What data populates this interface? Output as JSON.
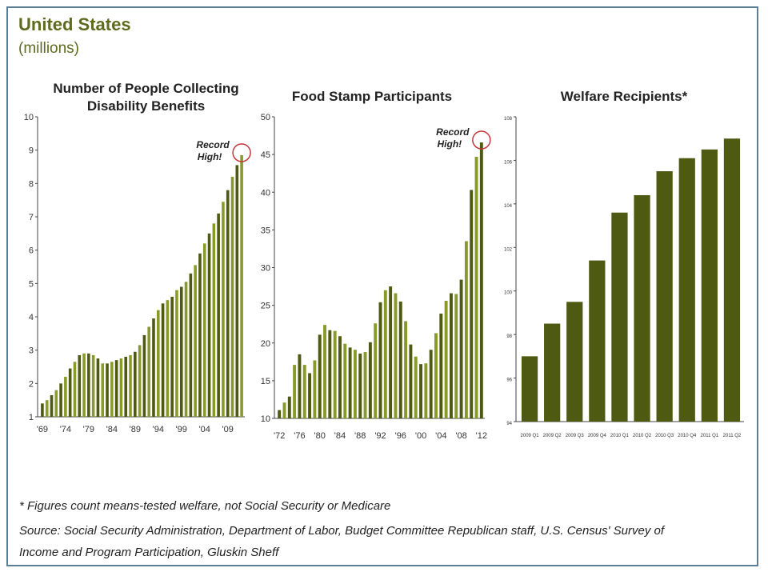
{
  "header": {
    "title": "United States",
    "subtitle": "(millions)"
  },
  "chart_data": [
    {
      "type": "bar",
      "title": "Number of People Collecting Disability Benefits",
      "annotation": "Record High!",
      "xlabel": "",
      "ylabel": "",
      "ylim": [
        1,
        10
      ],
      "yticks": [
        1,
        2,
        3,
        4,
        5,
        6,
        7,
        8,
        9,
        10
      ],
      "xtick_labels": [
        "'69",
        "'74",
        "'79",
        "'84",
        "'89",
        "'94",
        "'99",
        "'04",
        "'09"
      ],
      "categories": [
        "1969",
        "1970",
        "1971",
        "1972",
        "1973",
        "1974",
        "1975",
        "1976",
        "1977",
        "1978",
        "1979",
        "1980",
        "1981",
        "1982",
        "1983",
        "1984",
        "1985",
        "1986",
        "1987",
        "1988",
        "1989",
        "1990",
        "1991",
        "1992",
        "1993",
        "1994",
        "1995",
        "1996",
        "1997",
        "1998",
        "1999",
        "2000",
        "2001",
        "2002",
        "2003",
        "2004",
        "2005",
        "2006",
        "2007",
        "2008",
        "2009",
        "2010",
        "2011",
        "2012"
      ],
      "values": [
        1.4,
        1.5,
        1.65,
        1.8,
        2.0,
        2.2,
        2.45,
        2.65,
        2.85,
        2.9,
        2.9,
        2.85,
        2.75,
        2.6,
        2.6,
        2.65,
        2.7,
        2.75,
        2.8,
        2.85,
        2.95,
        3.15,
        3.45,
        3.7,
        3.95,
        4.2,
        4.4,
        4.5,
        4.6,
        4.8,
        4.9,
        5.05,
        5.3,
        5.55,
        5.9,
        6.2,
        6.5,
        6.8,
        7.1,
        7.45,
        7.8,
        8.2,
        8.55,
        8.85
      ]
    },
    {
      "type": "bar",
      "title": "Food Stamp Participants",
      "annotation": "Record High!",
      "xlabel": "",
      "ylabel": "",
      "ylim": [
        10,
        50
      ],
      "yticks": [
        10,
        15,
        20,
        25,
        30,
        35,
        40,
        45,
        50
      ],
      "xtick_labels": [
        "'72",
        "'76",
        "'80",
        "'84",
        "'88",
        "'92",
        "'96",
        "'00",
        "'04",
        "'08",
        "'12"
      ],
      "categories": [
        "1972",
        "1973",
        "1974",
        "1975",
        "1976",
        "1977",
        "1978",
        "1979",
        "1980",
        "1981",
        "1982",
        "1983",
        "1984",
        "1985",
        "1986",
        "1987",
        "1988",
        "1989",
        "1990",
        "1991",
        "1992",
        "1993",
        "1994",
        "1995",
        "1996",
        "1997",
        "1998",
        "1999",
        "2000",
        "2001",
        "2002",
        "2003",
        "2004",
        "2005",
        "2006",
        "2007",
        "2008",
        "2009",
        "2010",
        "2011",
        "2012"
      ],
      "values": [
        11.1,
        12.1,
        12.9,
        17.1,
        18.5,
        17.1,
        16.0,
        17.7,
        21.1,
        22.4,
        21.7,
        21.6,
        20.9,
        19.9,
        19.4,
        19.1,
        18.6,
        18.8,
        20.1,
        22.6,
        25.4,
        27.0,
        27.5,
        26.6,
        25.5,
        22.9,
        19.8,
        18.2,
        17.2,
        17.3,
        19.1,
        21.3,
        23.9,
        25.6,
        26.6,
        26.5,
        28.4,
        33.5,
        40.3,
        44.7,
        46.6
      ]
    },
    {
      "type": "bar",
      "title": "Welfare Recipients*",
      "xlabel": "",
      "ylabel": "",
      "ylim": [
        94,
        108
      ],
      "yticks": [
        94,
        96,
        98,
        100,
        102,
        104,
        106,
        108
      ],
      "categories": [
        "2009 Q1",
        "2009 Q2",
        "2009 Q3",
        "2009 Q4",
        "2010 Q1",
        "2010 Q2",
        "2010 Q3",
        "2010 Q4",
        "2011 Q1",
        "2011 Q2"
      ],
      "values": [
        97.0,
        98.5,
        99.5,
        101.4,
        103.6,
        104.4,
        105.5,
        106.1,
        106.5,
        107.0
      ]
    }
  ],
  "footnotes": {
    "note": "* Figures count means-tested welfare, not Social Security or Medicare",
    "source_line1": "Source: Social Security Administration, Department of Labor, Budget Committee Republican staff, U.S. Census' Survey of",
    "source_line2": "Income and Program Participation, Gluskin Sheff"
  },
  "colors": {
    "bar": "#4e5a12",
    "bar_highlight": "#8a9a2a",
    "circle": "#c2373a",
    "title": "#5d6b1e"
  }
}
